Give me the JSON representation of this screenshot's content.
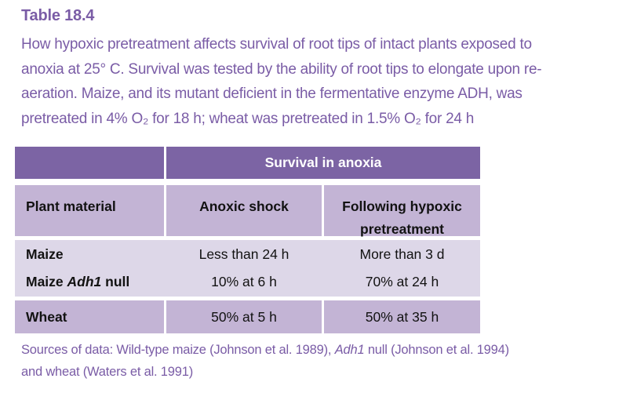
{
  "page": {
    "title": "Table 18.4",
    "caption_lines": [
      "How hypoxic pretreatment affects survival of root tips of intact plants exposed to",
      "anoxia at 25° C. Survival was tested by the ability of root tips to elongate upon re-",
      "aeration. Maize, and its mutant deficient in the fermentative enzyme ADH, was",
      "pretreated in 4% O₂ for 18 h; wheat was pretreated in 1.5% O₂ for 24 h"
    ]
  },
  "table": {
    "span_header": "Survival in anoxia",
    "col_headers": {
      "plant_material": "Plant material",
      "anoxic_shock": "Anoxic shock",
      "hypoxic_pretreatment": "Following hypoxic pretreatment"
    },
    "rows": [
      {
        "material": "Maize",
        "anoxic_shock": "Less than 24 h",
        "hypoxic_pretreatment": "More than 3 d"
      },
      {
        "material_pre": "Maize ",
        "material_italic": "Adh1",
        "material_post": " null",
        "anoxic_shock": "10% at 6 h",
        "hypoxic_pretreatment": "70% at 24 h"
      },
      {
        "material": "Wheat",
        "anoxic_shock": "50% at 5 h",
        "hypoxic_pretreatment": "50% at 35 h"
      }
    ]
  },
  "sources": {
    "line1_pre": "Sources of data: Wild-type maize (Johnson et al. 1989), ",
    "line1_italic": "Adh1",
    "line1_post": " null (Johnson et al. 1994)",
    "line2": "and wheat (Waters et al. 1991)"
  },
  "colors": {
    "header_dark": "#7c64a4",
    "band_medium": "#c3b4d5",
    "band_light": "#ddd7e8",
    "text_purple": "#7a5ca6",
    "header_text_white": "#ffffff",
    "body_text": "#121212"
  }
}
